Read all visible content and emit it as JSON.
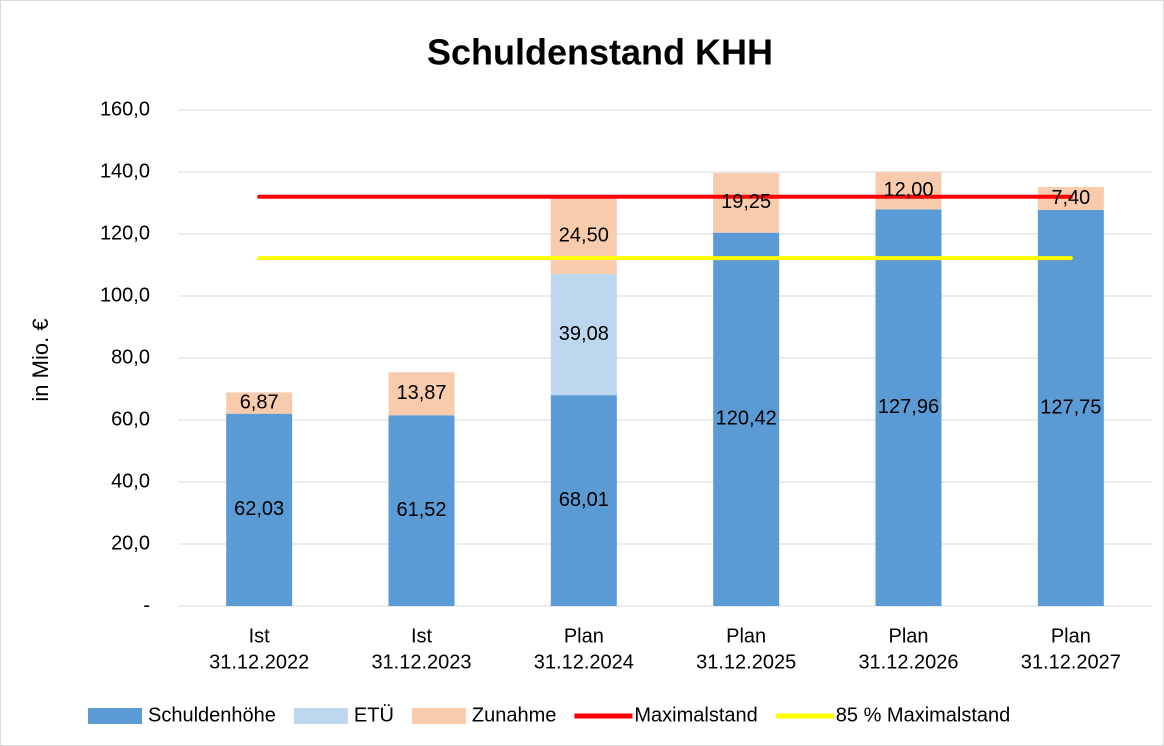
{
  "chart_data": {
    "type": "bar",
    "stacked": true,
    "title": "Schuldenstand KHH",
    "y_label": "in Mio. €",
    "categories": [
      [
        "Ist",
        "31.12.2022"
      ],
      [
        "Ist",
        "31.12.2023"
      ],
      [
        "Plan",
        "31.12.2024"
      ],
      [
        "Plan",
        "31.12.2025"
      ],
      [
        "Plan",
        "31.12.2026"
      ],
      [
        "Plan",
        "31.12.2027"
      ]
    ],
    "series": [
      {
        "name": "Schuldenhöhe",
        "type": "bar",
        "color": "#5b9bd5",
        "values": [
          62.03,
          61.52,
          68.01,
          120.42,
          127.96,
          127.75
        ],
        "value_labels": [
          "62,03",
          "61,52",
          "68,01",
          "120,42",
          "127,96",
          "127,75"
        ]
      },
      {
        "name": "ETÜ",
        "type": "bar",
        "color": "#bdd7ee",
        "values": [
          null,
          null,
          39.08,
          null,
          null,
          null
        ],
        "value_labels": [
          null,
          null,
          "39,08",
          null,
          null,
          null
        ]
      },
      {
        "name": "Zunahme",
        "type": "bar",
        "color": "#f8cbad",
        "values": [
          6.87,
          13.87,
          24.5,
          19.25,
          12.0,
          7.4
        ],
        "value_labels": [
          "6,87",
          "13,87",
          "24,50",
          "19,25",
          "12,00",
          "7,40"
        ]
      },
      {
        "name": "Maximalstand",
        "type": "line",
        "color": "#ff0000",
        "values": [
          132,
          132,
          132,
          132,
          132,
          132
        ]
      },
      {
        "name": "85 % Maximalstand",
        "type": "line",
        "color": "#ffff00",
        "values": [
          112.2,
          112.2,
          112.2,
          112.2,
          112.2,
          112.2
        ]
      }
    ],
    "ylim": [
      0,
      160
    ],
    "yticks": [
      {
        "value": 0,
        "label": "-"
      },
      {
        "value": 20,
        "label": "20,0"
      },
      {
        "value": 40,
        "label": "40,0"
      },
      {
        "value": 60,
        "label": "60,0"
      },
      {
        "value": 80,
        "label": "80,0"
      },
      {
        "value": 100,
        "label": "100,0"
      },
      {
        "value": 120,
        "label": "120,0"
      },
      {
        "value": 140,
        "label": "140,0"
      },
      {
        "value": 160,
        "label": "160,0"
      }
    ],
    "grid": true,
    "legend": "bottom"
  }
}
